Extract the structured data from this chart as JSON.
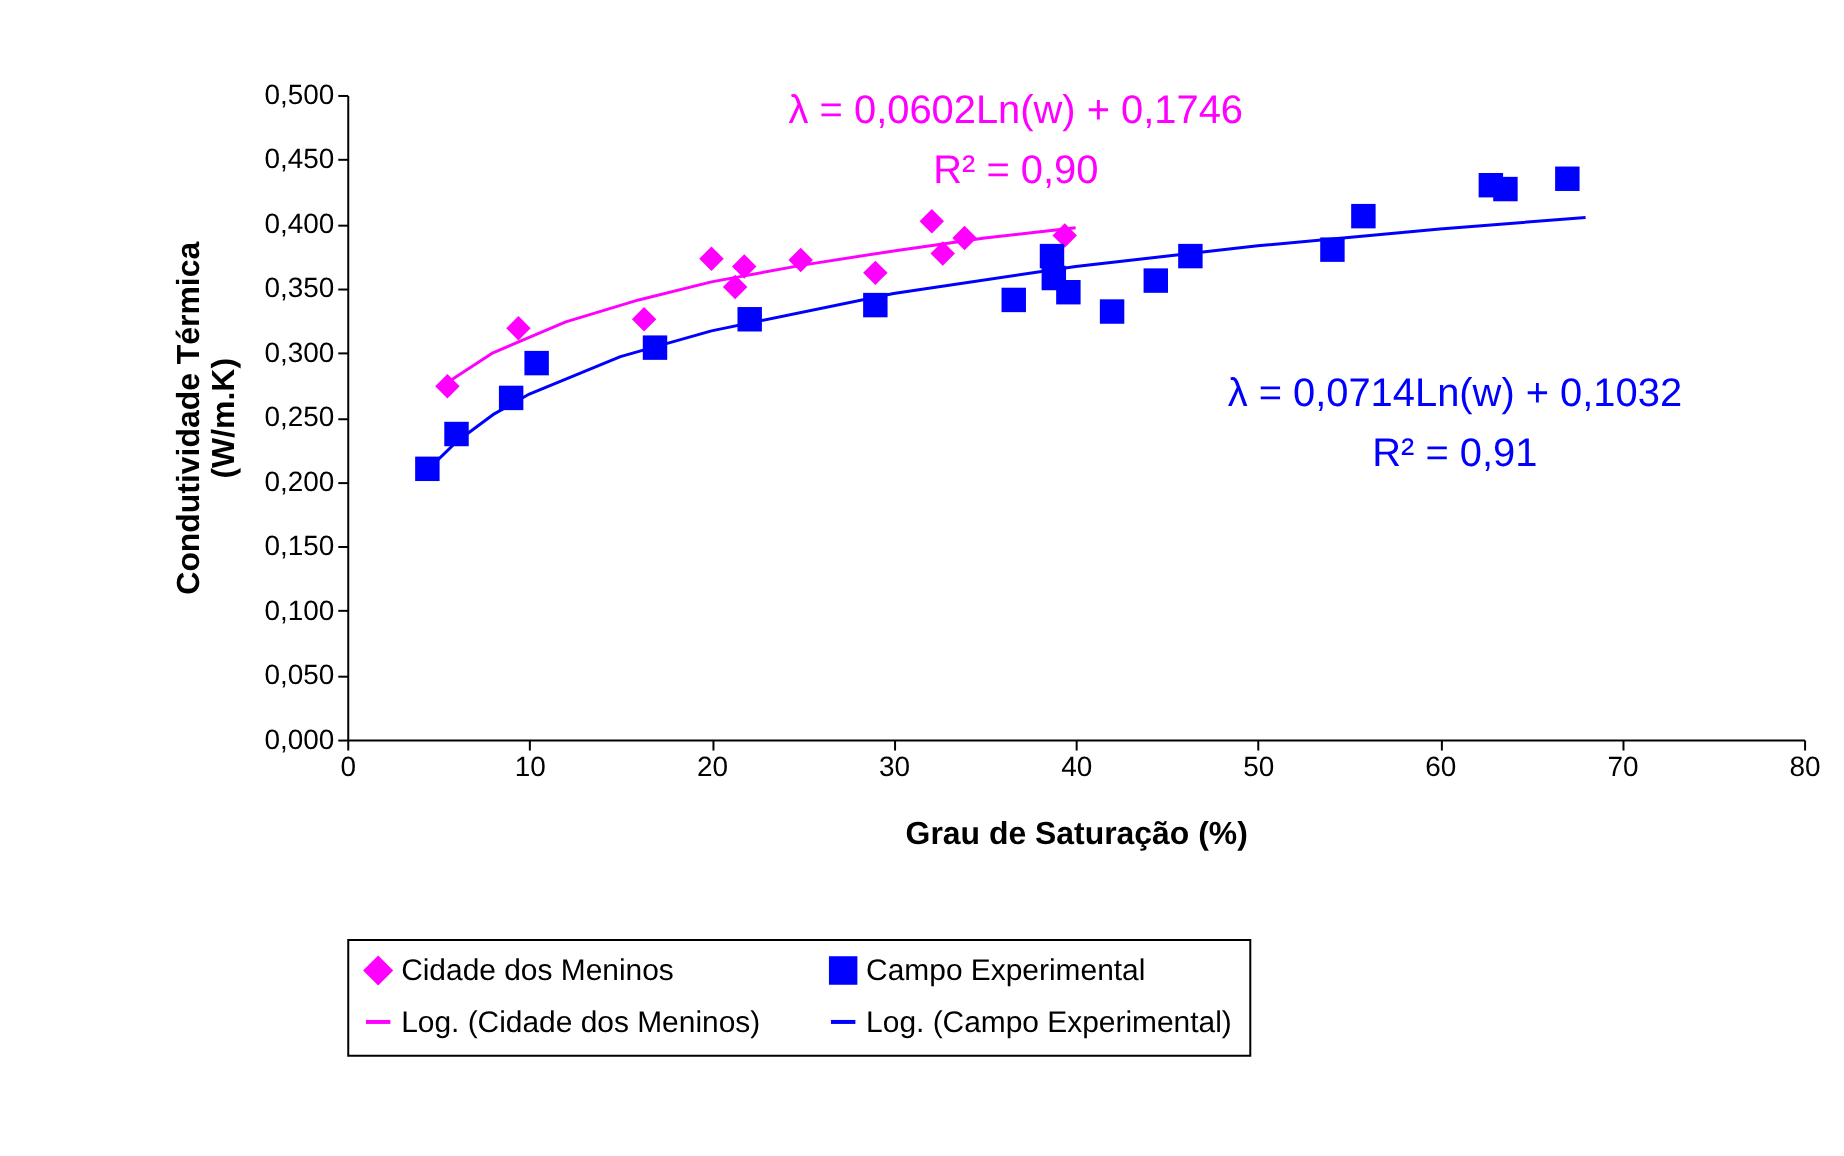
{
  "chart_data": {
    "type": "scatter",
    "xlabel": "Grau de Saturação (%)",
    "ylabel": "Condutividade Térmica\n(W/m.K)",
    "xlim": [
      0,
      80
    ],
    "xticks": [
      0,
      10,
      20,
      30,
      40,
      50,
      60,
      70,
      80
    ],
    "ylim": [
      0,
      0.5
    ],
    "yticks": [
      {
        "value": 0,
        "label": "0,000"
      },
      {
        "value": 0.05,
        "label": "0,050"
      },
      {
        "value": 0.1,
        "label": "0,100"
      },
      {
        "value": 0.15,
        "label": "0,150"
      },
      {
        "value": 0.2,
        "label": "0,200"
      },
      {
        "value": 0.25,
        "label": "0,250"
      },
      {
        "value": 0.3,
        "label": "0,300"
      },
      {
        "value": 0.35,
        "label": "0,350"
      },
      {
        "value": 0.4,
        "label": "0,400"
      },
      {
        "value": 0.45,
        "label": "0,450"
      },
      {
        "value": 0.5,
        "label": "0,500"
      }
    ],
    "grid": false,
    "legend": "bottom",
    "annotations": [
      "λ = 0,0602Ln(w) + 0,1746",
      "R² = 0,90",
      "λ = 0,0714Ln(w) + 0,1032",
      "R² = 0,91"
    ],
    "series": [
      {
        "name": "Cidade dos Meninos",
        "marker": "diamond",
        "color": "#ff00ff",
        "x": [
          5.5,
          9.4,
          16.3,
          20.0,
          21.8,
          21.3,
          24.9,
          29.0,
          32.1,
          33.9,
          32.7,
          39.4
        ],
        "values": [
          0.274,
          0.319,
          0.326,
          0.373,
          0.367,
          0.351,
          0.372,
          0.362,
          0.402,
          0.389,
          0.377,
          0.391
        ]
      },
      {
        "name": "Campo Experimental",
        "marker": "square",
        "color": "#0000ff",
        "x": [
          4.4,
          6.0,
          9.0,
          10.4,
          16.9,
          22.1,
          29.0,
          36.6,
          38.7,
          38.8,
          39.6,
          42.0,
          44.4,
          46.3,
          54.1,
          55.8,
          62.8,
          63.6,
          67.0
        ],
        "values": [
          0.21,
          0.237,
          0.265,
          0.292,
          0.304,
          0.326,
          0.337,
          0.341,
          0.375,
          0.358,
          0.347,
          0.332,
          0.356,
          0.375,
          0.38,
          0.406,
          0.43,
          0.427,
          0.435
        ]
      },
      {
        "name": "Log. (Cidade dos Meninos)",
        "type": "line",
        "marker": "none",
        "color": "#ff00ff",
        "x": [
          5.5,
          8,
          12,
          16,
          20,
          25,
          30,
          35,
          40
        ],
        "values": [
          0.277,
          0.3,
          0.324,
          0.341,
          0.355,
          0.368,
          0.379,
          0.389,
          0.397
        ]
      },
      {
        "name": "Log. (Campo Experimental)",
        "type": "line",
        "marker": "none",
        "color": "#0000ff",
        "x": [
          4.4,
          6,
          8,
          10,
          15,
          20,
          30,
          40,
          50,
          60,
          68
        ],
        "values": [
          0.209,
          0.231,
          0.252,
          0.268,
          0.297,
          0.317,
          0.346,
          0.367,
          0.383,
          0.396,
          0.405
        ]
      }
    ]
  }
}
